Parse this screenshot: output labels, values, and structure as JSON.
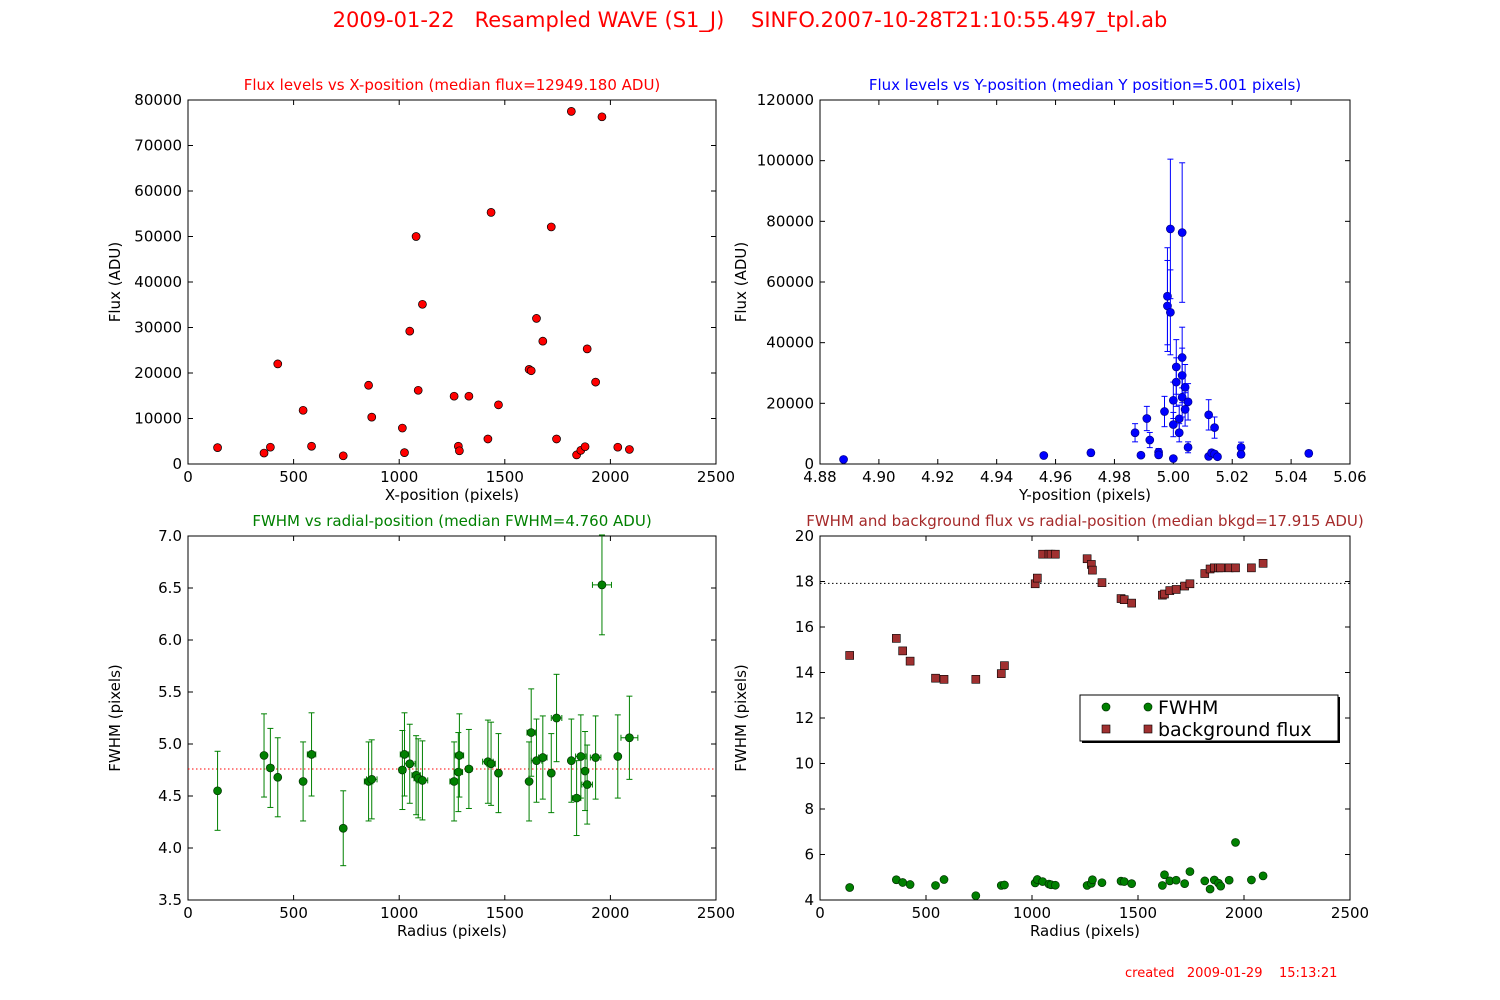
{
  "page": {
    "title": "2009-01-22   Resampled WAVE (S1_J)    SINFO.2007-10-28T21:10:55.497_tpl.ab",
    "footer": "created   2009-01-29    15:13:21"
  },
  "colors": {
    "red": "#ff0000",
    "blue": "#0000ff",
    "green": "#008000",
    "brown": "#a52a2a",
    "bkgd_marker": "#a03030"
  },
  "chart_data": [
    {
      "type": "scatter",
      "title": "Flux levels vs X-position (median flux=12949.180 ADU)",
      "xlabel": "X-position (pixels)",
      "ylabel": "Flux (ADU)",
      "xlim": [
        0,
        2500
      ],
      "ylim": [
        0,
        80000
      ],
      "xticks": [
        0,
        500,
        1000,
        1500,
        2000,
        2500
      ],
      "yticks": [
        0,
        10000,
        20000,
        30000,
        40000,
        50000,
        60000,
        70000,
        80000
      ],
      "xtick_labels": [
        "0",
        "500",
        "1000",
        "1500",
        "2000",
        "2500"
      ],
      "ytick_labels": [
        "0",
        "10000",
        "20000",
        "30000",
        "40000",
        "50000",
        "60000",
        "70000",
        "80000"
      ],
      "series": [
        {
          "marker": "circle",
          "color": "#ff0000",
          "x": [
            140,
            360,
            390,
            425,
            545,
            585,
            735,
            855,
            870,
            1015,
            1025,
            1050,
            1080,
            1090,
            1110,
            1260,
            1280,
            1285,
            1330,
            1420,
            1435,
            1470,
            1615,
            1625,
            1650,
            1680,
            1720,
            1745,
            1815,
            1840,
            1860,
            1880,
            1890,
            1930,
            1960,
            2035,
            2090
          ],
          "y": [
            3600,
            2400,
            3700,
            22000,
            11800,
            3900,
            1800,
            17300,
            10300,
            7900,
            2500,
            29200,
            50000,
            16200,
            35100,
            14900,
            3900,
            2900,
            14900,
            5500,
            55300,
            13000,
            20800,
            20500,
            32000,
            27000,
            52100,
            5500,
            77500,
            2000,
            3000,
            3800,
            25300,
            18000,
            76300,
            3700,
            3200
          ]
        }
      ]
    },
    {
      "type": "scatter",
      "title": "Flux levels vs Y-position (median Y position=5.001 pixels)",
      "xlabel": "Y-position (pixels)",
      "ylabel": "Flux (ADU)",
      "xlim": [
        4.88,
        5.06
      ],
      "ylim": [
        0,
        120000
      ],
      "xticks": [
        4.88,
        4.9,
        4.92,
        4.94,
        4.96,
        4.98,
        5.0,
        5.02,
        5.04,
        5.06
      ],
      "yticks": [
        0,
        20000,
        40000,
        60000,
        80000,
        100000,
        120000
      ],
      "xtick_labels": [
        "4.88",
        "4.90",
        "4.92",
        "4.94",
        "4.96",
        "4.98",
        "5.00",
        "5.02",
        "5.04",
        "5.06"
      ],
      "ytick_labels": [
        "0",
        "20000",
        "40000",
        "60000",
        "80000",
        "100000",
        "120000"
      ],
      "series": [
        {
          "marker": "circle",
          "color": "#0000ff",
          "x": [
            4.888,
            4.956,
            4.972,
            4.987,
            4.989,
            4.991,
            4.992,
            4.995,
            4.995,
            4.997,
            4.998,
            4.998,
            4.999,
            4.999,
            5.0,
            5.0,
            5.0,
            5.001,
            5.001,
            5.002,
            5.002,
            5.003,
            5.003,
            5.003,
            5.003,
            5.004,
            5.004,
            5.005,
            5.005,
            5.012,
            5.012,
            5.013,
            5.014,
            5.014,
            5.015,
            5.023,
            5.023,
            5.046
          ],
          "y": [
            1500,
            2800,
            3700,
            10300,
            2900,
            15000,
            7900,
            3900,
            3000,
            17300,
            52100,
            55300,
            50000,
            77500,
            21000,
            13000,
            1800,
            27000,
            32000,
            14900,
            10300,
            35100,
            29200,
            22000,
            76300,
            25300,
            18000,
            20500,
            5500,
            16200,
            2500,
            3700,
            12000,
            3300,
            2400,
            5500,
            3200,
            3500
          ],
          "yerr": [
            500,
            800,
            1000,
            3000,
            700,
            4000,
            2500,
            1200,
            900,
            5000,
            15000,
            16000,
            14000,
            23000,
            6000,
            4000,
            500,
            8000,
            9000,
            4500,
            3000,
            10000,
            9000,
            6500,
            23000,
            7500,
            5500,
            6000,
            1800,
            5000,
            700,
            1000,
            3500,
            1000,
            700,
            1700,
            1000,
            1000
          ]
        }
      ]
    },
    {
      "type": "scatter",
      "title": "FWHM vs radial-position (median FWHM=4.760 ADU)",
      "xlabel": "Radius (pixels)",
      "ylabel": "FWHM (pixels)",
      "xlim": [
        0,
        2500
      ],
      "ylim": [
        3.5,
        7.0
      ],
      "xticks": [
        0,
        500,
        1000,
        1500,
        2000,
        2500
      ],
      "yticks": [
        3.5,
        4.0,
        4.5,
        5.0,
        5.5,
        6.0,
        6.5,
        7.0
      ],
      "xtick_labels": [
        "0",
        "500",
        "1000",
        "1500",
        "2000",
        "2500"
      ],
      "ytick_labels": [
        "3.5",
        "4.0",
        "4.5",
        "5.0",
        "5.5",
        "6.0",
        "6.5",
        "7.0"
      ],
      "median_line": 4.76,
      "series": [
        {
          "marker": "circle",
          "color": "#008000",
          "x": [
            140,
            360,
            390,
            425,
            545,
            585,
            735,
            855,
            870,
            1015,
            1025,
            1050,
            1080,
            1090,
            1110,
            1260,
            1280,
            1285,
            1330,
            1420,
            1435,
            1470,
            1615,
            1625,
            1650,
            1680,
            1720,
            1745,
            1815,
            1840,
            1860,
            1880,
            1890,
            1930,
            1960,
            2035,
            2090
          ],
          "y": [
            4.55,
            4.89,
            4.77,
            4.68,
            4.64,
            4.9,
            4.19,
            4.64,
            4.66,
            4.75,
            4.9,
            4.81,
            4.7,
            4.67,
            4.65,
            4.64,
            4.73,
            4.89,
            4.76,
            4.83,
            4.81,
            4.72,
            4.64,
            5.11,
            4.84,
            4.87,
            4.72,
            5.25,
            4.84,
            4.48,
            4.88,
            4.74,
            4.61,
            4.87,
            6.53,
            4.88,
            5.06
          ],
          "yerr": [
            0.38,
            0.4,
            0.38,
            0.38,
            0.38,
            0.4,
            0.36,
            0.38,
            0.38,
            0.38,
            0.4,
            0.38,
            0.38,
            0.38,
            0.38,
            0.38,
            0.38,
            0.4,
            0.38,
            0.4,
            0.4,
            0.38,
            0.38,
            0.42,
            0.4,
            0.4,
            0.38,
            0.42,
            0.4,
            0.36,
            0.4,
            0.38,
            0.38,
            0.4,
            0.48,
            0.4,
            0.4
          ],
          "xerr": [
            0,
            0,
            15,
            0,
            0,
            20,
            0,
            20,
            25,
            15,
            20,
            25,
            20,
            20,
            25,
            20,
            20,
            20,
            15,
            25,
            20,
            0,
            0,
            20,
            25,
            20,
            0,
            25,
            0,
            20,
            25,
            0,
            25,
            25,
            45,
            0,
            40
          ]
        }
      ]
    },
    {
      "type": "scatter",
      "title": "FWHM and background flux vs radial-position (median bkgd=17.915 ADU)",
      "xlabel": "Radius (pixels)",
      "ylabel": "FWHM (pixels)",
      "xlim": [
        0,
        2500
      ],
      "ylim": [
        4,
        20
      ],
      "xticks": [
        0,
        500,
        1000,
        1500,
        2000,
        2500
      ],
      "yticks": [
        4,
        6,
        8,
        10,
        12,
        14,
        16,
        18,
        20
      ],
      "xtick_labels": [
        "0",
        "500",
        "1000",
        "1500",
        "2000",
        "2500"
      ],
      "ytick_labels": [
        "4",
        "6",
        "8",
        "10",
        "12",
        "14",
        "16",
        "18",
        "20"
      ],
      "median_line": 17.915,
      "legend": "right",
      "series": [
        {
          "name": "FWHM",
          "marker": "circle",
          "color": "#008000",
          "x": [
            140,
            360,
            390,
            425,
            545,
            585,
            735,
            855,
            870,
            1015,
            1025,
            1050,
            1080,
            1090,
            1110,
            1260,
            1280,
            1285,
            1330,
            1420,
            1435,
            1470,
            1615,
            1625,
            1650,
            1680,
            1720,
            1745,
            1815,
            1840,
            1860,
            1880,
            1890,
            1930,
            1960,
            2035,
            2090
          ],
          "y": [
            4.55,
            4.89,
            4.77,
            4.68,
            4.64,
            4.9,
            4.19,
            4.64,
            4.66,
            4.75,
            4.9,
            4.81,
            4.7,
            4.67,
            4.65,
            4.64,
            4.73,
            4.89,
            4.76,
            4.83,
            4.81,
            4.72,
            4.64,
            5.11,
            4.84,
            4.87,
            4.72,
            5.25,
            4.84,
            4.48,
            4.88,
            4.74,
            4.61,
            4.87,
            6.53,
            4.88,
            5.06
          ]
        },
        {
          "name": "background flux",
          "marker": "square",
          "color": "#a03030",
          "x": [
            140,
            360,
            390,
            425,
            545,
            585,
            735,
            855,
            870,
            1015,
            1025,
            1050,
            1080,
            1090,
            1110,
            1260,
            1280,
            1285,
            1330,
            1420,
            1435,
            1470,
            1615,
            1625,
            1650,
            1680,
            1720,
            1745,
            1815,
            1840,
            1860,
            1880,
            1890,
            1930,
            1960,
            2035,
            2090
          ],
          "y": [
            14.75,
            15.5,
            14.95,
            14.5,
            13.75,
            13.7,
            13.7,
            13.95,
            14.3,
            17.9,
            18.15,
            19.2,
            19.2,
            19.2,
            19.2,
            19.0,
            18.75,
            18.5,
            17.95,
            17.25,
            17.2,
            17.05,
            17.4,
            17.45,
            17.6,
            17.65,
            17.8,
            17.9,
            18.35,
            18.55,
            18.6,
            18.6,
            18.6,
            18.6,
            18.6,
            18.6,
            18.8
          ]
        }
      ]
    }
  ]
}
